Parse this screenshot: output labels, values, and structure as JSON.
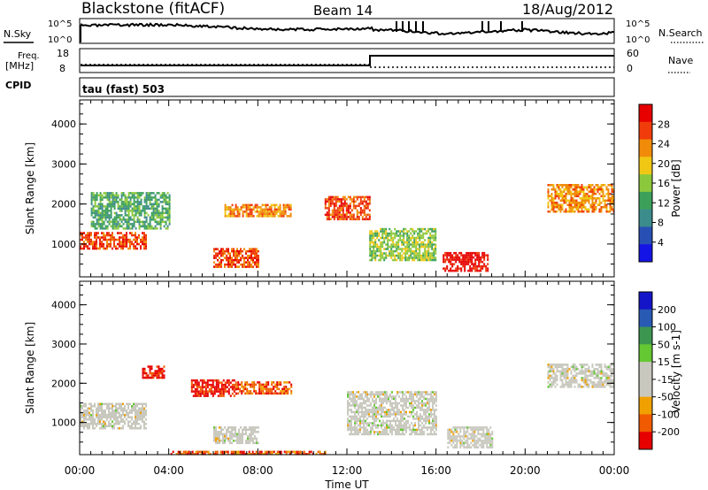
{
  "header": {
    "station": "Blackstone (fitACF)",
    "beam": "Beam 14",
    "date": "18/Aug/2012"
  },
  "top_panels": {
    "noise_left": "N.Sky",
    "noise_right": "N.Search",
    "noise_ticks_left": [
      "10^5",
      "10^0"
    ],
    "noise_ticks_right": [
      "10^5",
      "10^0"
    ],
    "freq_label": "Freq.",
    "freq_unit": "[MHz]",
    "freq_ticks": [
      "18",
      "8"
    ],
    "nave_label": "Nave",
    "nave_ticks": [
      "60",
      "0"
    ],
    "cpid_label": "CPID",
    "cpid_value": "tau (fast) 503"
  },
  "colors": {
    "power_scale": [
      "#1414e6",
      "#2850b4",
      "#3c8c8c",
      "#3ca05a",
      "#8cc83c",
      "#f0c814",
      "#f08c0a",
      "#f03c0a",
      "#e60000"
    ],
    "velocity_scale": [
      "#e60000",
      "#f05a00",
      "#f0a000",
      "#c8c8be",
      "#c8c8be",
      "#64c832",
      "#3c9650",
      "#285ab4",
      "#1414c8"
    ]
  },
  "chart_data": [
    {
      "type": "heatmap",
      "title": "Power",
      "xlabel": "",
      "ylabel": "Slant Range [km]",
      "x_ticks": [
        "00:00",
        "04:00",
        "08:00",
        "12:00",
        "16:00",
        "20:00",
        "00:00"
      ],
      "xlim": [
        0,
        24
      ],
      "y_ticks": [
        "1000",
        "2000",
        "3000",
        "4000"
      ],
      "ylim": [
        180,
        4600
      ],
      "colorbar_label": "Power [dB]",
      "colorbar_ticks": [
        "4",
        "8",
        "12",
        "16",
        "20",
        "24",
        "28"
      ],
      "colorbar_range": [
        0,
        32
      ],
      "echo_regions": [
        {
          "t_start": 0.0,
          "t_end": 3.0,
          "range_start": 900,
          "range_end": 1300,
          "power_db": 26
        },
        {
          "t_start": 0.5,
          "t_end": 4.0,
          "range_start": 1400,
          "range_end": 2300,
          "power_db": 10
        },
        {
          "t_start": 6.0,
          "t_end": 8.0,
          "range_start": 450,
          "range_end": 900,
          "power_db": 28
        },
        {
          "t_start": 6.5,
          "t_end": 9.5,
          "range_start": 1700,
          "range_end": 2000,
          "power_db": 22
        },
        {
          "t_start": 11.0,
          "t_end": 13.0,
          "range_start": 1600,
          "range_end": 2200,
          "power_db": 26
        },
        {
          "t_start": 13.0,
          "t_end": 16.0,
          "range_start": 600,
          "range_end": 1400,
          "power_db": 14
        },
        {
          "t_start": 16.3,
          "t_end": 18.3,
          "range_start": 350,
          "range_end": 800,
          "power_db": 30
        },
        {
          "t_start": 21.0,
          "t_end": 24.0,
          "range_start": 1800,
          "range_end": 2500,
          "power_db": 22
        }
      ]
    },
    {
      "type": "heatmap",
      "title": "Velocity",
      "xlabel": "Time UT",
      "ylabel": "Slant Range [km]",
      "x_ticks": [
        "00:00",
        "04:00",
        "08:00",
        "12:00",
        "16:00",
        "20:00",
        "00:00"
      ],
      "xlim": [
        0,
        24
      ],
      "y_ticks": [
        "1000",
        "2000",
        "3000",
        "4000"
      ],
      "ylim": [
        180,
        4600
      ],
      "colorbar_label": "Velocity [m s-1]",
      "colorbar_ticks": [
        "200",
        "100",
        "50",
        "15",
        "-15",
        "-50",
        "-100",
        "-200"
      ],
      "colorbar_range": [
        -250,
        250
      ],
      "echo_regions": [
        {
          "t_start": 0.0,
          "t_end": 3.0,
          "range_start": 850,
          "range_end": 1500,
          "velocity": 0
        },
        {
          "t_start": 2.8,
          "t_end": 3.8,
          "range_start": 2150,
          "range_end": 2450,
          "velocity": -220
        },
        {
          "t_start": 6.0,
          "t_end": 8.0,
          "range_start": 450,
          "range_end": 900,
          "velocity": 0
        },
        {
          "t_start": 5.0,
          "t_end": 7.0,
          "range_start": 1700,
          "range_end": 2100,
          "velocity": -220
        },
        {
          "t_start": 7.0,
          "t_end": 9.5,
          "range_start": 1750,
          "range_end": 2050,
          "velocity": -70
        },
        {
          "t_start": 12.0,
          "t_end": 16.0,
          "range_start": 700,
          "range_end": 1800,
          "velocity": 0
        },
        {
          "t_start": 16.5,
          "t_end": 18.5,
          "range_start": 350,
          "range_end": 900,
          "velocity": 0
        },
        {
          "t_start": 21.0,
          "t_end": 24.0,
          "range_start": 1900,
          "range_end": 2500,
          "velocity": 0
        },
        {
          "t_start": 4.0,
          "t_end": 11.0,
          "range_start": 180,
          "range_end": 280,
          "velocity": -70
        }
      ]
    }
  ],
  "xlabel_main": "Time UT"
}
